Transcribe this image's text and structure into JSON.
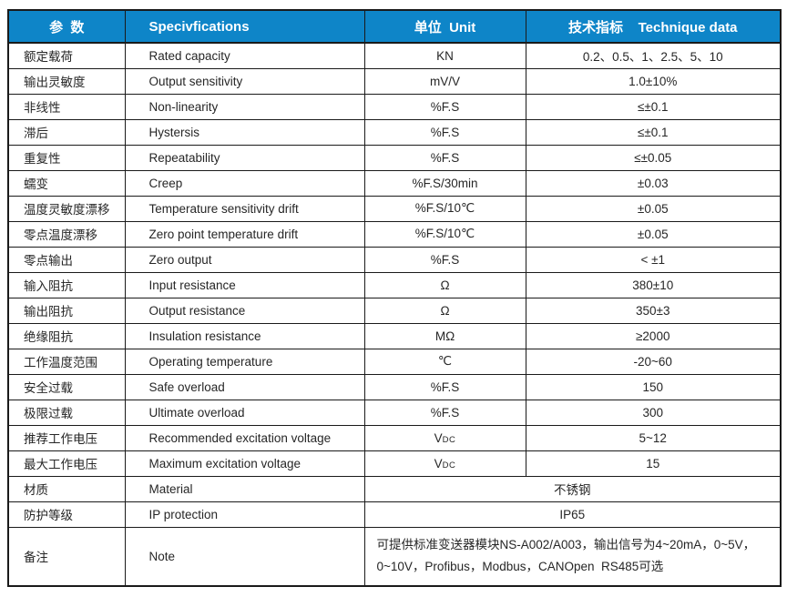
{
  "colors": {
    "header_bg": "#0e85c8",
    "header_text": "#ffffff",
    "border": "#1a1a1a",
    "body_text": "#262626"
  },
  "table": {
    "headers": [
      "参  数",
      "Specivfications",
      "单位  Unit",
      "技术指标    Technique data"
    ],
    "rows": [
      {
        "cn": "额定载荷",
        "en": "Rated capacity",
        "unit": "KN",
        "value": "0.2、0.5、1、2.5、5、10"
      },
      {
        "cn": "输出灵敏度",
        "en": "Output sensitivity",
        "unit": "mV/V",
        "value": "1.0±10%"
      },
      {
        "cn": "非线性",
        "en": "Non-linearity",
        "unit": "%F.S",
        "value": "≤±0.1"
      },
      {
        "cn": "滞后",
        "en": "Hystersis",
        "unit": "%F.S",
        "value": "≤±0.1"
      },
      {
        "cn": "重复性",
        "en": "Repeatability",
        "unit": "%F.S",
        "value": "≤±0.05"
      },
      {
        "cn": "蠕变",
        "en": "Creep",
        "unit": "%F.S/30min",
        "value": "±0.03"
      },
      {
        "cn": "温度灵敏度漂移",
        "en": "Temperature sensitivity drift",
        "unit": "%F.S/10℃",
        "value": "±0.05"
      },
      {
        "cn": "零点温度漂移",
        "en": "Zero point temperature drift",
        "unit": "%F.S/10℃",
        "value": "±0.05"
      },
      {
        "cn": "零点输出",
        "en": "Zero output",
        "unit": "%F.S",
        "value": "< ±1"
      },
      {
        "cn": "输入阻抗",
        "en": "Input resistance",
        "unit": "Ω",
        "value": "380±10"
      },
      {
        "cn": "输出阻抗",
        "en": "Output resistance",
        "unit": "Ω",
        "value": "350±3"
      },
      {
        "cn": "绝缘阻抗",
        "en": "Insulation resistance",
        "unit": "MΩ",
        "value": "≥2000"
      },
      {
        "cn": "工作温度范围",
        "en": "Operating temperature",
        "unit": "℃",
        "value": "-20~60"
      },
      {
        "cn": "安全过载",
        "en": "Safe overload",
        "unit": "%F.S",
        "value": "150"
      },
      {
        "cn": "极限过载",
        "en": "Ultimate overload",
        "unit": "%F.S",
        "value": "300"
      },
      {
        "cn": "推荐工作电压",
        "en": "Recommended excitation voltage",
        "unit": "VDC",
        "value": "5~12"
      },
      {
        "cn": "最大工作电压",
        "en": "Maximum excitation voltage",
        "unit": "VDC",
        "value": "15"
      },
      {
        "cn": "材质",
        "en": "Material",
        "merged": true,
        "align": "center",
        "value": "不锈钢"
      },
      {
        "cn": "防护等级",
        "en": "IP protection",
        "merged": true,
        "align": "center",
        "value": "IP65"
      },
      {
        "cn": "备注",
        "en": "Note",
        "merged": true,
        "align": "left",
        "value": "可提供标准变送器模块NS-A002/A003，输出信号为4~20mA，0~5V，0~10V，Profibus，Modbus，CANOpen  RS485可选"
      }
    ]
  }
}
